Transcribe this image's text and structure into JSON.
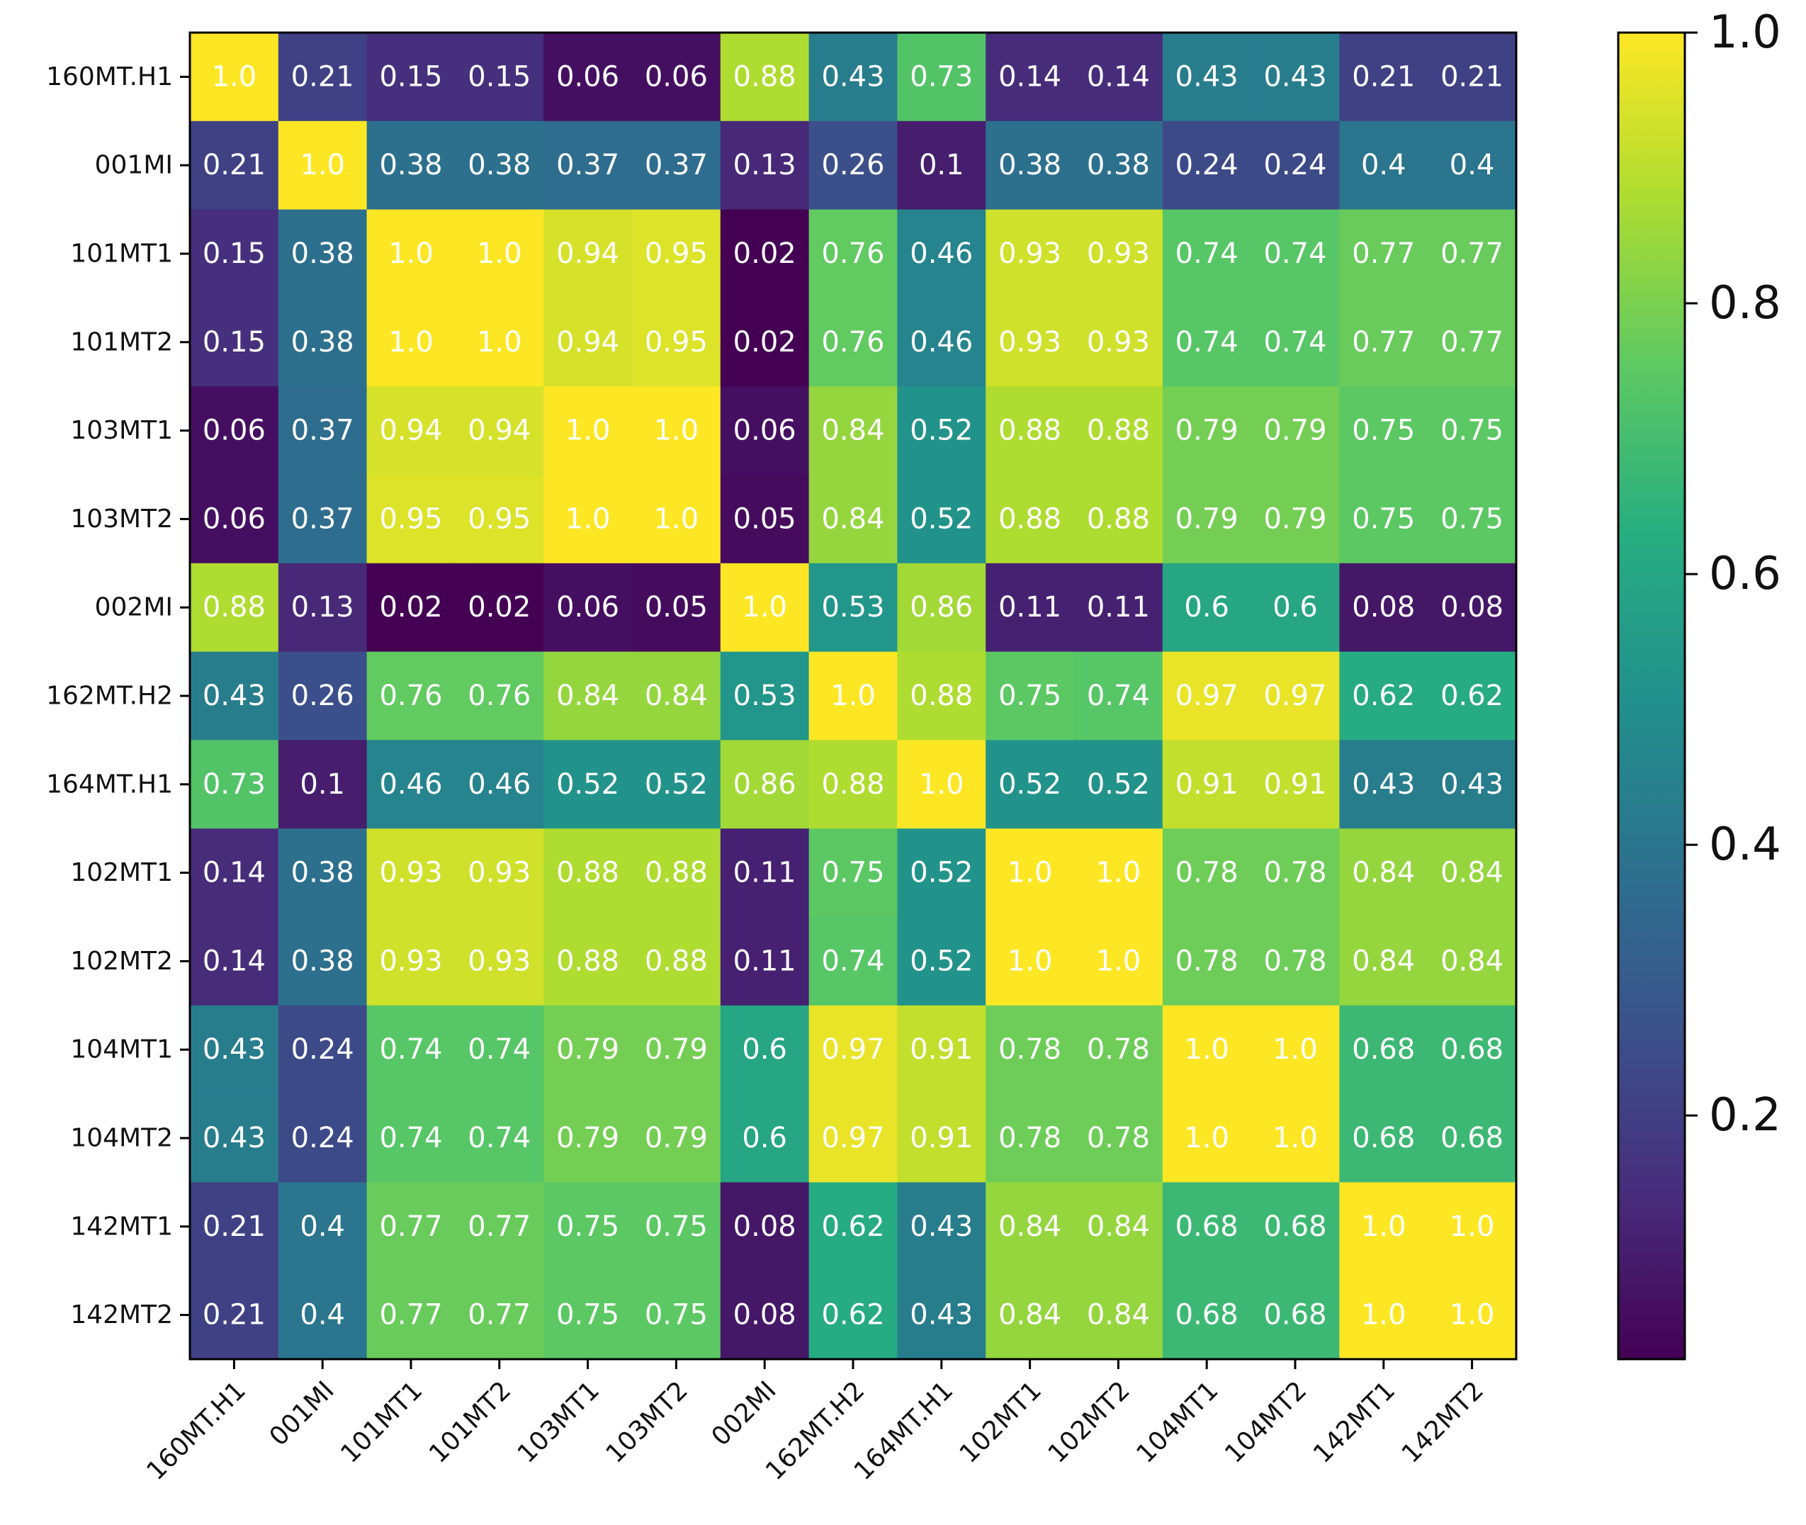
{
  "chart_data": {
    "type": "heatmap",
    "title": "",
    "xlabel": "",
    "ylabel": "",
    "labels": [
      "160MT.H1",
      "001MI",
      "101MT1",
      "101MT2",
      "103MT1",
      "103MT2",
      "002MI",
      "162MT.H2",
      "164MT.H1",
      "102MT1",
      "102MT2",
      "104MT1",
      "104MT2",
      "142MT1",
      "142MT2"
    ],
    "cell_labels": [
      [
        "1.0",
        "0.21",
        "0.15",
        "0.15",
        "0.06",
        "0.06",
        "0.88",
        "0.43",
        "0.73",
        "0.14",
        "0.14",
        "0.43",
        "0.43",
        "0.21",
        "0.21"
      ],
      [
        "0.21",
        "1.0",
        "0.38",
        "0.38",
        "0.37",
        "0.37",
        "0.13",
        "0.26",
        "0.1",
        "0.38",
        "0.38",
        "0.24",
        "0.24",
        "0.4",
        "0.4"
      ],
      [
        "0.15",
        "0.38",
        "1.0",
        "1.0",
        "0.94",
        "0.95",
        "0.02",
        "0.76",
        "0.46",
        "0.93",
        "0.93",
        "0.74",
        "0.74",
        "0.77",
        "0.77"
      ],
      [
        "0.15",
        "0.38",
        "1.0",
        "1.0",
        "0.94",
        "0.95",
        "0.02",
        "0.76",
        "0.46",
        "0.93",
        "0.93",
        "0.74",
        "0.74",
        "0.77",
        "0.77"
      ],
      [
        "0.06",
        "0.37",
        "0.94",
        "0.94",
        "1.0",
        "1.0",
        "0.06",
        "0.84",
        "0.52",
        "0.88",
        "0.88",
        "0.79",
        "0.79",
        "0.75",
        "0.75"
      ],
      [
        "0.06",
        "0.37",
        "0.95",
        "0.95",
        "1.0",
        "1.0",
        "0.05",
        "0.84",
        "0.52",
        "0.88",
        "0.88",
        "0.79",
        "0.79",
        "0.75",
        "0.75"
      ],
      [
        "0.88",
        "0.13",
        "0.02",
        "0.02",
        "0.06",
        "0.05",
        "1.0",
        "0.53",
        "0.86",
        "0.11",
        "0.11",
        "0.6",
        "0.6",
        "0.08",
        "0.08"
      ],
      [
        "0.43",
        "0.26",
        "0.76",
        "0.76",
        "0.84",
        "0.84",
        "0.53",
        "1.0",
        "0.88",
        "0.75",
        "0.74",
        "0.97",
        "0.97",
        "0.62",
        "0.62"
      ],
      [
        "0.73",
        "0.1",
        "0.46",
        "0.46",
        "0.52",
        "0.52",
        "0.86",
        "0.88",
        "1.0",
        "0.52",
        "0.52",
        "0.91",
        "0.91",
        "0.43",
        "0.43"
      ],
      [
        "0.14",
        "0.38",
        "0.93",
        "0.93",
        "0.88",
        "0.88",
        "0.11",
        "0.75",
        "0.52",
        "1.0",
        "1.0",
        "0.78",
        "0.78",
        "0.84",
        "0.84"
      ],
      [
        "0.14",
        "0.38",
        "0.93",
        "0.93",
        "0.88",
        "0.88",
        "0.11",
        "0.74",
        "0.52",
        "1.0",
        "1.0",
        "0.78",
        "0.78",
        "0.84",
        "0.84"
      ],
      [
        "0.43",
        "0.24",
        "0.74",
        "0.74",
        "0.79",
        "0.79",
        "0.6",
        "0.97",
        "0.91",
        "0.78",
        "0.78",
        "1.0",
        "1.0",
        "0.68",
        "0.68"
      ],
      [
        "0.43",
        "0.24",
        "0.74",
        "0.74",
        "0.79",
        "0.79",
        "0.6",
        "0.97",
        "0.91",
        "0.78",
        "0.78",
        "1.0",
        "1.0",
        "0.68",
        "0.68"
      ],
      [
        "0.21",
        "0.4",
        "0.77",
        "0.77",
        "0.75",
        "0.75",
        "0.08",
        "0.62",
        "0.43",
        "0.84",
        "0.84",
        "0.68",
        "0.68",
        "1.0",
        "1.0"
      ],
      [
        "0.21",
        "0.4",
        "0.77",
        "0.77",
        "0.75",
        "0.75",
        "0.08",
        "0.62",
        "0.43",
        "0.84",
        "0.84",
        "0.68",
        "0.68",
        "1.0",
        "1.0"
      ]
    ],
    "colormap": "viridis",
    "value_range": [
      0.02,
      1.0
    ],
    "colorbar_ticks": [
      "0.2",
      "0.4",
      "0.6",
      "0.8",
      "1.0"
    ],
    "colorbar_tick_values": [
      0.2,
      0.4,
      0.6,
      0.8,
      1.0
    ],
    "grid": false,
    "legend": "colorbar-right"
  }
}
